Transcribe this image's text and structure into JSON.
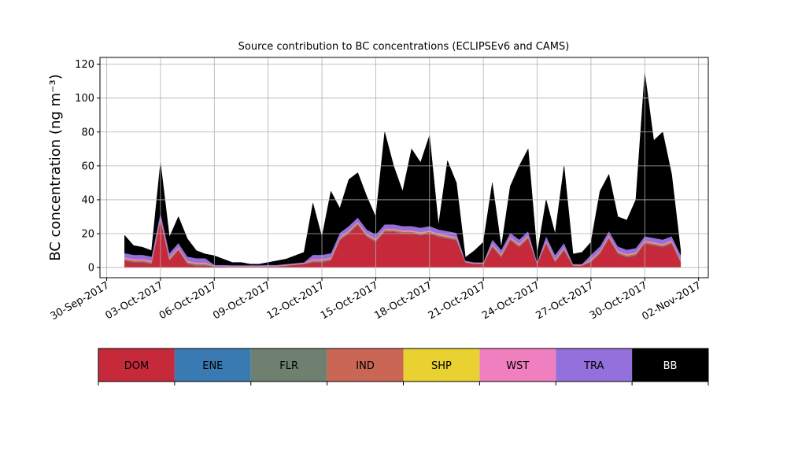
{
  "chart_data": {
    "type": "stacked_area",
    "title": "Source contribution to BC concentrations (ECLIPSEv6 and CAMS)",
    "ylabel": "BC concentration (ng m⁻³)",
    "x": [
      "2017-10-01T00:00",
      "2017-10-01T12:00",
      "2017-10-02T00:00",
      "2017-10-02T12:00",
      "2017-10-03T00:00",
      "2017-10-03T12:00",
      "2017-10-04T00:00",
      "2017-10-04T12:00",
      "2017-10-05T00:00",
      "2017-10-05T12:00",
      "2017-10-06T00:00",
      "2017-10-06T12:00",
      "2017-10-07T00:00",
      "2017-10-07T12:00",
      "2017-10-08T00:00",
      "2017-10-08T12:00",
      "2017-10-09T00:00",
      "2017-10-09T12:00",
      "2017-10-10T00:00",
      "2017-10-10T12:00",
      "2017-10-11T00:00",
      "2017-10-11T12:00",
      "2017-10-12T00:00",
      "2017-10-12T12:00",
      "2017-10-13T00:00",
      "2017-10-13T12:00",
      "2017-10-14T00:00",
      "2017-10-14T12:00",
      "2017-10-15T00:00",
      "2017-10-15T12:00",
      "2017-10-16T00:00",
      "2017-10-16T12:00",
      "2017-10-17T00:00",
      "2017-10-17T12:00",
      "2017-10-18T00:00",
      "2017-10-18T12:00",
      "2017-10-19T00:00",
      "2017-10-19T12:00",
      "2017-10-20T00:00",
      "2017-10-20T12:00",
      "2017-10-21T00:00",
      "2017-10-21T12:00",
      "2017-10-22T00:00",
      "2017-10-22T12:00",
      "2017-10-23T00:00",
      "2017-10-23T12:00",
      "2017-10-24T00:00",
      "2017-10-24T12:00",
      "2017-10-25T00:00",
      "2017-10-25T12:00",
      "2017-10-26T00:00",
      "2017-10-26T12:00",
      "2017-10-27T00:00",
      "2017-10-27T12:00",
      "2017-10-28T00:00",
      "2017-10-28T12:00",
      "2017-10-29T00:00",
      "2017-10-29T12:00",
      "2017-10-30T00:00",
      "2017-10-30T12:00",
      "2017-10-31T00:00",
      "2017-10-31T12:00",
      "2017-11-01T00:00"
    ],
    "series": [
      {
        "name": "DOM",
        "color": "#c62a3a",
        "values": [
          4,
          3,
          3,
          2,
          28,
          4,
          10,
          2,
          1,
          1,
          0.5,
          0.5,
          0.3,
          0.3,
          0.3,
          0.3,
          0.5,
          0.5,
          1,
          1.5,
          2,
          3,
          3,
          4,
          16,
          20,
          25,
          18,
          15,
          21,
          21,
          20,
          20,
          19,
          20,
          18,
          17,
          16,
          3,
          2,
          2,
          12,
          6,
          16,
          12,
          17,
          2,
          14,
          3,
          10,
          1,
          1,
          3,
          8,
          17,
          8,
          6,
          7,
          14,
          13,
          12,
          14,
          3
        ]
      },
      {
        "name": "ENE",
        "color": "#3a7ab2",
        "values": [
          0.3,
          0.3,
          0.3,
          0.3,
          0.3,
          0.3,
          0.3,
          0.3,
          0.3,
          0.3,
          0.1,
          0.1,
          0.1,
          0.1,
          0.1,
          0.1,
          0.1,
          0.1,
          0.1,
          0.1,
          0.1,
          0.3,
          0.3,
          0.3,
          0.3,
          0.3,
          0.3,
          0.3,
          0.3,
          0.3,
          0.3,
          0.3,
          0.3,
          0.3,
          0.3,
          0.3,
          0.3,
          0.3,
          0.1,
          0.1,
          0.1,
          0.3,
          0.3,
          0.3,
          0.3,
          0.3,
          0.1,
          0.3,
          0.3,
          0.3,
          0.1,
          0.1,
          0.3,
          0.3,
          0.3,
          0.3,
          0.3,
          0.3,
          0.3,
          0.3,
          0.3,
          0.3,
          0.3
        ]
      },
      {
        "name": "FLR",
        "color": "#6e8070",
        "values": [
          0.1,
          0.1,
          0.1,
          0.1,
          0.1,
          0.1,
          0.1,
          0.1,
          0.1,
          0.1,
          0.05,
          0.05,
          0.05,
          0.05,
          0.05,
          0.05,
          0.05,
          0.05,
          0.05,
          0.05,
          0.05,
          0.1,
          0.1,
          0.1,
          0.1,
          0.1,
          0.1,
          0.1,
          0.1,
          0.1,
          0.1,
          0.1,
          0.1,
          0.1,
          0.1,
          0.1,
          0.1,
          0.1,
          0.05,
          0.05,
          0.05,
          0.1,
          0.1,
          0.1,
          0.1,
          0.1,
          0.05,
          0.1,
          0.1,
          0.1,
          0.05,
          0.05,
          0.1,
          0.1,
          0.1,
          0.1,
          0.1,
          0.1,
          0.1,
          0.1,
          0.1,
          0.1,
          0.1
        ]
      },
      {
        "name": "IND",
        "color": "#c96655",
        "values": [
          0.8,
          0.8,
          0.8,
          0.8,
          0.8,
          0.8,
          0.8,
          0.8,
          0.8,
          0.8,
          0.2,
          0.2,
          0.2,
          0.2,
          0.2,
          0.2,
          0.2,
          0.2,
          0.2,
          0.2,
          0.2,
          0.8,
          0.8,
          0.8,
          0.8,
          0.8,
          0.8,
          0.8,
          0.8,
          0.8,
          0.8,
          0.8,
          0.8,
          0.8,
          0.8,
          0.8,
          0.8,
          0.8,
          0.2,
          0.2,
          0.2,
          0.8,
          0.8,
          0.8,
          0.8,
          0.8,
          0.2,
          0.8,
          0.8,
          0.8,
          0.2,
          0.2,
          0.8,
          0.8,
          0.8,
          0.8,
          0.8,
          0.8,
          0.8,
          0.8,
          0.8,
          0.8,
          0.8
        ]
      },
      {
        "name": "SHP",
        "color": "#e8d130",
        "values": [
          0.2,
          0.2,
          0.2,
          0.2,
          0.2,
          0.2,
          0.2,
          0.2,
          0.2,
          0.2,
          0.05,
          0.05,
          0.05,
          0.05,
          0.05,
          0.05,
          0.05,
          0.05,
          0.05,
          0.05,
          0.05,
          0.2,
          0.2,
          0.2,
          0.2,
          0.2,
          0.2,
          0.2,
          0.2,
          0.2,
          0.2,
          0.2,
          0.2,
          0.2,
          0.2,
          0.2,
          0.2,
          0.2,
          0.05,
          0.05,
          0.05,
          0.2,
          0.2,
          0.2,
          0.2,
          0.2,
          0.05,
          0.2,
          0.2,
          0.2,
          0.05,
          0.05,
          0.2,
          0.2,
          0.2,
          0.2,
          0.2,
          0.2,
          0.2,
          0.2,
          0.2,
          0.2,
          0.2
        ]
      },
      {
        "name": "WST",
        "color": "#f07fbf",
        "values": [
          0.6,
          0.6,
          0.6,
          0.6,
          0.6,
          0.6,
          0.6,
          0.6,
          0.6,
          0.6,
          0.2,
          0.2,
          0.2,
          0.2,
          0.2,
          0.2,
          0.2,
          0.2,
          0.2,
          0.2,
          0.2,
          0.6,
          0.6,
          0.6,
          0.6,
          0.6,
          0.6,
          0.6,
          0.6,
          0.6,
          0.6,
          0.6,
          0.6,
          0.6,
          0.6,
          0.6,
          0.6,
          0.6,
          0.2,
          0.2,
          0.2,
          0.6,
          0.6,
          0.6,
          0.6,
          0.6,
          0.2,
          0.6,
          0.6,
          0.6,
          0.2,
          0.2,
          0.6,
          0.6,
          0.6,
          0.6,
          0.6,
          0.6,
          0.6,
          0.6,
          0.6,
          0.6,
          0.6
        ]
      },
      {
        "name": "TRA",
        "color": "#9370db",
        "values": [
          2.5,
          2.5,
          2.5,
          2.5,
          2.5,
          2.5,
          2.5,
          2.5,
          2.5,
          2.5,
          0.5,
          0.5,
          0.5,
          0.5,
          0.5,
          0.5,
          0.5,
          0.5,
          0.5,
          0.5,
          0.5,
          2.5,
          2.5,
          2.5,
          2.5,
          2.5,
          2.5,
          2.5,
          2.5,
          2.5,
          2.5,
          2.5,
          2.5,
          2.5,
          2.5,
          2.5,
          2.5,
          2.5,
          0.5,
          0.5,
          0.5,
          2.5,
          2.5,
          2.5,
          2.5,
          2.5,
          0.5,
          2.5,
          2.5,
          2.5,
          0.5,
          0.5,
          2.5,
          2.5,
          2.5,
          2.5,
          2.5,
          2.5,
          2.5,
          2.5,
          2.5,
          2.5,
          2.5
        ]
      },
      {
        "name": "BB",
        "color": "#000000",
        "values": [
          10.5,
          5.5,
          4.5,
          3.5,
          29.5,
          9.5,
          15.5,
          10.5,
          4.5,
          2.5,
          5.4,
          3.4,
          1.6,
          1.6,
          0.6,
          0.6,
          1.4,
          2.4,
          2.9,
          4.4,
          5.9,
          30.5,
          10.5,
          36.5,
          14.5,
          27.5,
          26.5,
          19.5,
          10.5,
          54.5,
          34.5,
          20.5,
          45.5,
          38.5,
          53.5,
          2.5,
          41.5,
          29.5,
          1.9,
          6.9,
          11.9,
          33.5,
          1.5,
          27.5,
          43.5,
          48.5,
          4.9,
          21.5,
          12.5,
          45.5,
          5.9,
          6.9,
          7.5,
          32.5,
          33.5,
          17.5,
          17.5,
          28.5,
          96.5,
          57.5,
          63.5,
          36.5,
          2.5
        ]
      }
    ],
    "xlim": [
      "2017-09-29T15:00",
      "2017-11-02T13:00"
    ],
    "xticks": [
      {
        "value": "2017-09-30T00:00",
        "label": "30-Sep-2017"
      },
      {
        "value": "2017-10-03T00:00",
        "label": "03-Oct-2017"
      },
      {
        "value": "2017-10-06T00:00",
        "label": "06-Oct-2017"
      },
      {
        "value": "2017-10-09T00:00",
        "label": "09-Oct-2017"
      },
      {
        "value": "2017-10-12T00:00",
        "label": "12-Oct-2017"
      },
      {
        "value": "2017-10-15T00:00",
        "label": "15-Oct-2017"
      },
      {
        "value": "2017-10-18T00:00",
        "label": "18-Oct-2017"
      },
      {
        "value": "2017-10-21T00:00",
        "label": "21-Oct-2017"
      },
      {
        "value": "2017-10-24T00:00",
        "label": "24-Oct-2017"
      },
      {
        "value": "2017-10-27T00:00",
        "label": "27-Oct-2017"
      },
      {
        "value": "2017-10-30T00:00",
        "label": "30-Oct-2017"
      },
      {
        "value": "2017-11-02T00:00",
        "label": "02-Nov-2017"
      }
    ],
    "ylim": [
      -6,
      124
    ],
    "yticks": [
      0,
      20,
      40,
      60,
      80,
      100,
      120
    ],
    "grid": true
  }
}
